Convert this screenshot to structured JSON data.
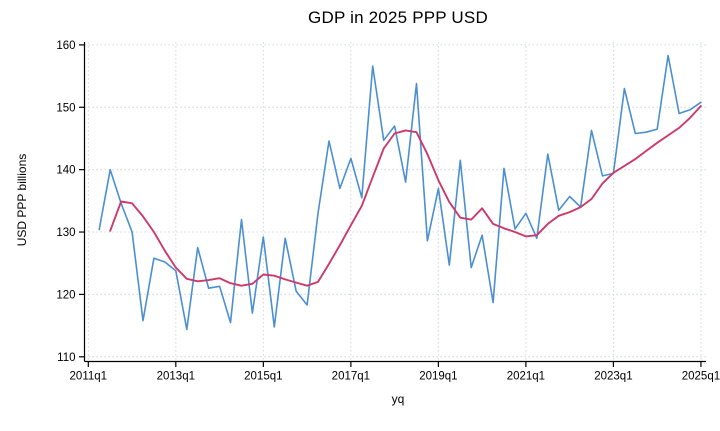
{
  "chart_data": {
    "type": "line",
    "title": "GDP in 2025 PPP USD",
    "xlabel": "yq",
    "ylabel": "USD PPP billions",
    "grid": true,
    "legend": "none",
    "ylim": [
      110,
      160
    ],
    "y_ticks": [
      110,
      120,
      130,
      140,
      150,
      160
    ],
    "x_tick_labels": [
      "2011q1",
      "2013q1",
      "2015q1",
      "2017q1",
      "2019q1",
      "2021q1",
      "2023q1",
      "2025q1"
    ],
    "x_tick_offsets": [
      0,
      8,
      16,
      24,
      32,
      40,
      48,
      56
    ],
    "x_unit": "quarter",
    "x_range": [
      "2011q1",
      "2025q1"
    ],
    "grid_color": "#d0d6de",
    "axis_color": "#000000",
    "series": [
      {
        "id": "gdp-quarterly-blue",
        "color": "#4a8fd4",
        "start": "2011q2",
        "start_offset_quarters": 1,
        "values": [
          130.4,
          140,
          134.6,
          130,
          115.8,
          125.8,
          125.2,
          123.8,
          114.4,
          127.5,
          121,
          121.3,
          115.5,
          132,
          117,
          129.2,
          114.8,
          129,
          120.5,
          118.3,
          133,
          144.6,
          137,
          141.8,
          135.5,
          156.6,
          144.7,
          147,
          138,
          153.8,
          128.6,
          137,
          124.7,
          141.5,
          124.3,
          129.5,
          118.7,
          140.2,
          130.5,
          133,
          129,
          142.5,
          133.5,
          135.7,
          134,
          146.3,
          139,
          139.4,
          153,
          145.8,
          146,
          146.5,
          158.3,
          149,
          149.6,
          150.8
        ]
      },
      {
        "id": "trend-smoothed-red",
        "color": "#cc3a6a",
        "start": "2011q3",
        "start_offset_quarters": 2,
        "values": [
          130.2,
          134.9,
          134.6,
          132.5,
          130,
          127,
          124.3,
          122.5,
          122.1,
          122.3,
          122.6,
          121.8,
          121.4,
          121.7,
          123.2,
          123,
          122.4,
          121.9,
          121.4,
          122,
          124.9,
          127.9,
          131.1,
          134.2,
          138.8,
          143.4,
          145.8,
          146.3,
          146,
          142.5,
          138.3,
          134.8,
          132.3,
          132,
          133.8,
          131.3,
          130.6,
          130,
          129.3,
          129.5,
          131.3,
          132.6,
          133.2,
          134,
          135.3,
          137.8,
          139.5,
          140.6,
          141.7,
          143,
          144.3,
          145.5,
          146.7,
          148.3,
          150.2
        ]
      }
    ]
  }
}
